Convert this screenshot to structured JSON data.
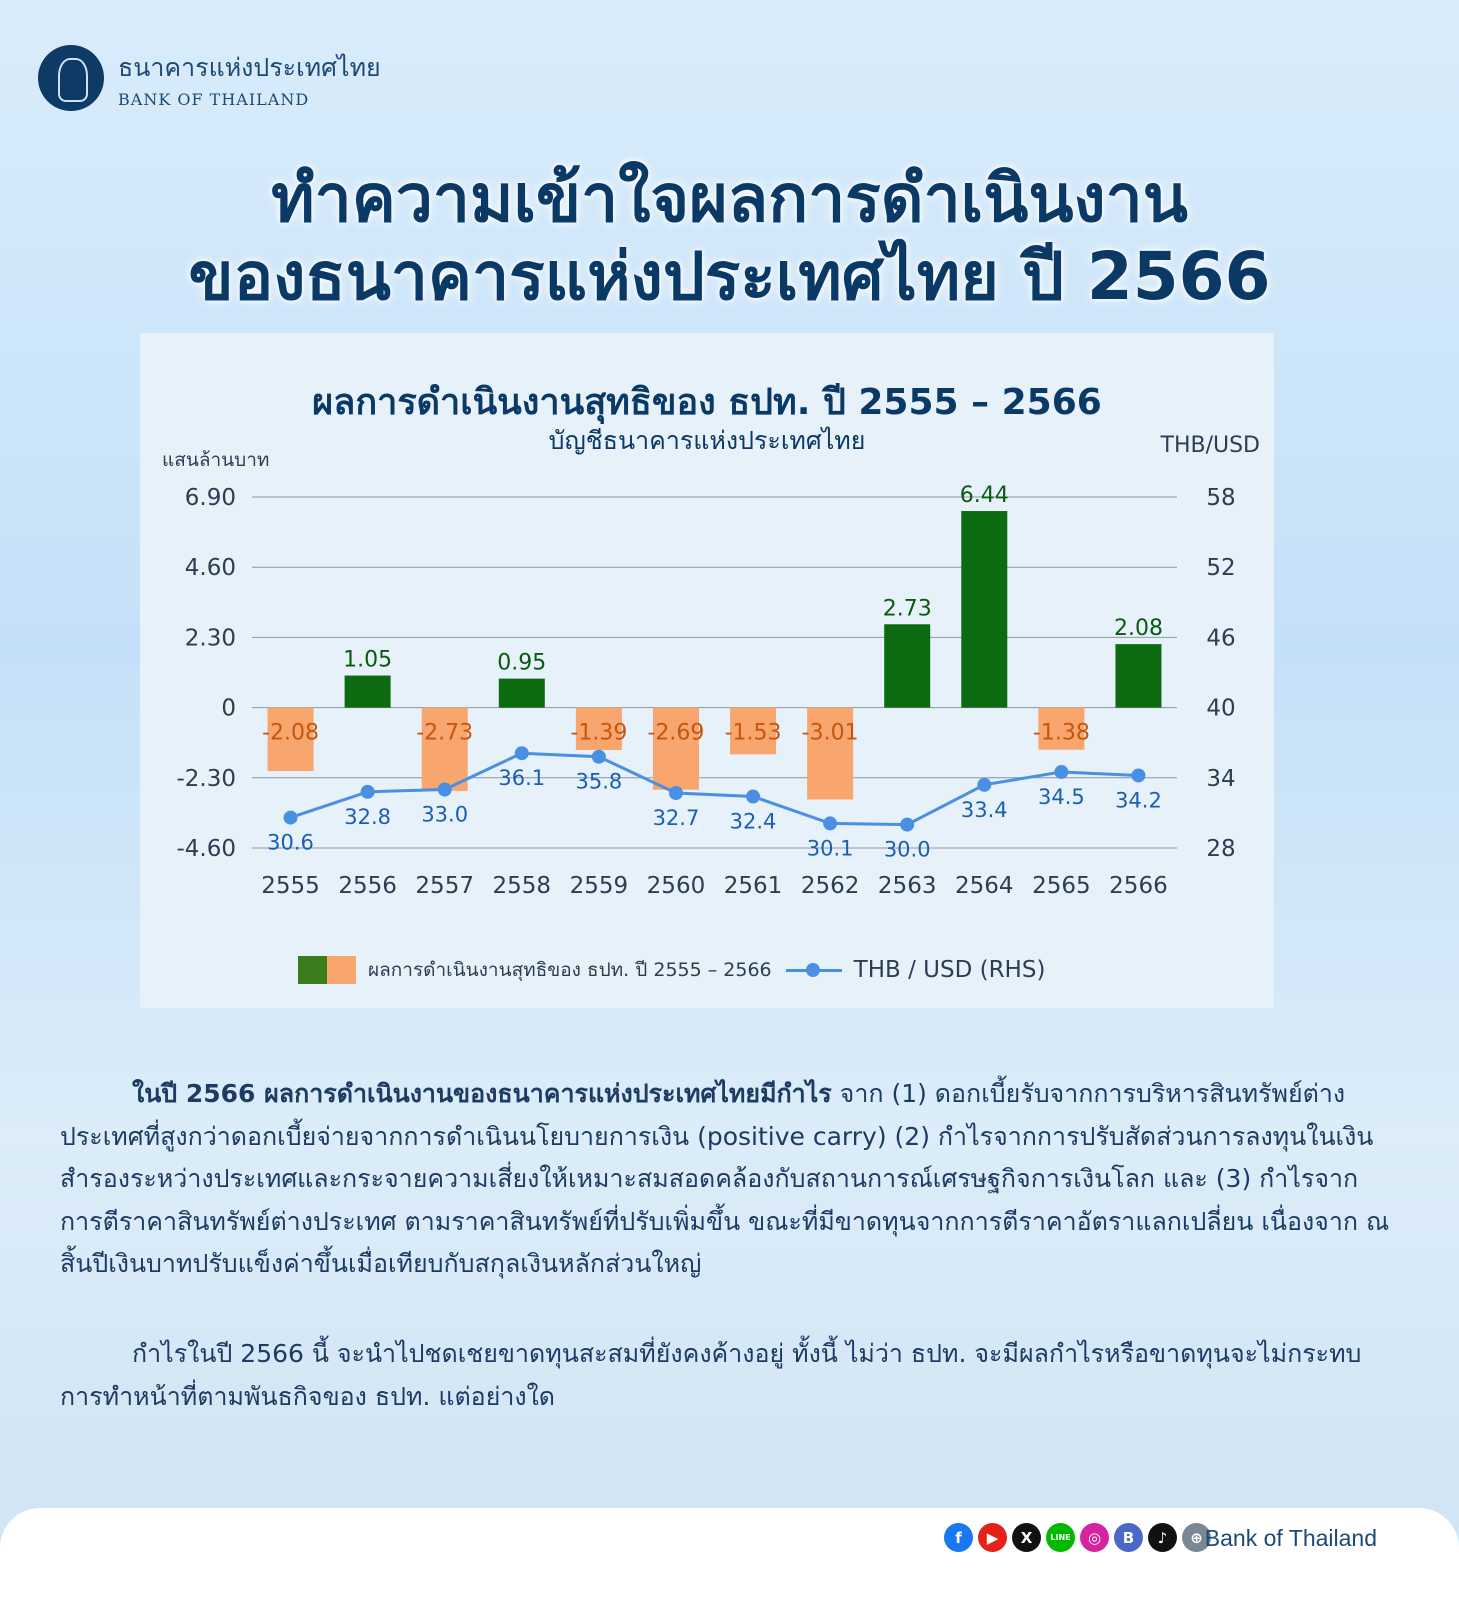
{
  "header": {
    "org_th": "ธนาคารแห่งประเทศไทย",
    "org_en": "BANK OF THAILAND"
  },
  "title": {
    "line1": "ทำความเข้าใจผลการดำเนินงาน",
    "line2": "ของธนาคารแห่งประเทศไทย ปี 2566"
  },
  "chart_data": {
    "type": "bar",
    "title": "ผลการดำเนินงานสุทธิของ ธปท. ปี 2555 – 2566",
    "subtitle": "บัญชีธนาคารแห่งประเทศไทย",
    "ylabel": "แสนล้านบาท",
    "y2label": "THB/USD",
    "categories": [
      "2555",
      "2556",
      "2557",
      "2558",
      "2559",
      "2560",
      "2561",
      "2562",
      "2563",
      "2564",
      "2565",
      "2566"
    ],
    "ylim": [
      -4.6,
      6.9
    ],
    "yticks": [
      "6.90",
      "4.60",
      "2.30",
      "0",
      "-2.30",
      "-4.60"
    ],
    "y2lim": [
      28,
      58
    ],
    "y2ticks": [
      "58",
      "52",
      "46",
      "40",
      "34",
      "28"
    ],
    "series": [
      {
        "name": "ผลการดำเนินงานสุทธิของ ธปท. ปี 2555 – 2566",
        "type": "bar",
        "values": [
          -2.08,
          1.05,
          -2.73,
          0.95,
          -1.39,
          -2.69,
          -1.53,
          -3.01,
          2.73,
          6.44,
          -1.38,
          2.08
        ],
        "labels": [
          "-2.08",
          "1.05",
          "-2.73",
          "0.95",
          "-1.39",
          "-2.69",
          "-1.53",
          "-3.01",
          "2.73",
          "6.44",
          "-1.38",
          "2.08"
        ],
        "colors": {
          "positive": "#0c6b10",
          "negative": "#f8a66e"
        }
      },
      {
        "name": "THB / USD (RHS)",
        "type": "line",
        "axis": "right",
        "values": [
          30.6,
          32.8,
          33.0,
          36.1,
          35.8,
          32.7,
          32.4,
          30.1,
          30.0,
          33.4,
          34.5,
          34.2
        ],
        "labels": [
          "30.6",
          "32.8",
          "33.0",
          "36.1",
          "35.8",
          "32.7",
          "32.4",
          "30.1",
          "30.0",
          "33.4",
          "34.5",
          "34.2"
        ],
        "color": "#4a90e2"
      }
    ],
    "grid": true,
    "legend": "bottom"
  },
  "body": {
    "p1_bold": "ในปี 2566 ผลการดำเนินงานของธนาคารแห่งประเทศไทยมีกำไร",
    "p1_rest": " จาก (1) ดอกเบี้ยรับจากการบริหารสินทรัพย์ต่างประเทศที่สูงกว่าดอกเบี้ยจ่ายจากการดำเนินนโยบายการเงิน (positive carry) (2) กำไรจากการปรับสัดส่วนการลงทุนในเงินสำรองระหว่างประเทศและกระจายความเสี่ยงให้เหมาะสมสอดคล้องกับสถานการณ์เศรษฐกิจการเงินโลก และ (3) กำไรจากการตีราคาสินทรัพย์ต่างประเทศ ตามราคาสินทรัพย์ที่ปรับเพิ่มขึ้น ขณะที่มีขาดทุนจากการตีราคาอัตราแลกเปลี่ยน เนื่องจาก ณ สิ้นปีเงินบาทปรับแข็งค่าขึ้นเมื่อเทียบกับสกุลเงินหลักส่วนใหญ่",
    "p2": "กำไรในปี 2566 นี้ จะนำไปชดเชยขาดทุนสะสมที่ยังคงค้างอยู่ ทั้งนี้ ไม่ว่า ธปท. จะมีผลกำไรหรือขาดทุนจะไม่กระทบการทำหน้าที่ตามพันธกิจของ ธปท. แต่อย่างใด"
  },
  "footer": {
    "brand": "Bank of Thailand",
    "socials": [
      {
        "icon": "facebook-icon",
        "glyph": "f",
        "color": "#1877f2"
      },
      {
        "icon": "youtube-icon",
        "glyph": "▶",
        "color": "#e62117"
      },
      {
        "icon": "x-icon",
        "glyph": "X",
        "color": "#111111"
      },
      {
        "icon": "line-icon",
        "glyph": "LINE",
        "color": "#00b900"
      },
      {
        "icon": "instagram-icon",
        "glyph": "◎",
        "color": "#d6249f"
      },
      {
        "icon": "blockdit-icon",
        "glyph": "B",
        "color": "#4a68c9"
      },
      {
        "icon": "tiktok-icon",
        "glyph": "♪",
        "color": "#111111"
      },
      {
        "icon": "globe-icon",
        "glyph": "⊕",
        "color": "#7a8794"
      }
    ]
  }
}
